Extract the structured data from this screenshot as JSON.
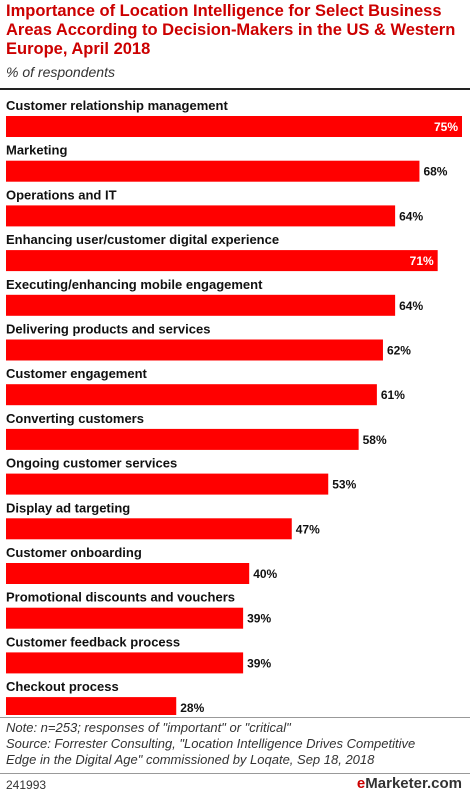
{
  "title": "Importance of Location Intelligence for Select Business Areas According to Decision-Makers in the US & Western Europe, April 2018",
  "subtitle": "% of respondents",
  "chart_data": {
    "type": "bar",
    "orientation": "horizontal",
    "categories": [
      "Customer relationship management",
      "Marketing",
      "Operations and IT",
      "Enhancing user/customer digital experience",
      "Executing/enhancing mobile engagement",
      "Delivering products and services",
      "Customer engagement",
      "Converting customers",
      "Ongoing customer services",
      "Display ad targeting",
      "Customer onboarding",
      "Promotional discounts and vouchers",
      "Customer feedback process",
      "Checkout process"
    ],
    "values": [
      75,
      68,
      64,
      71,
      64,
      62,
      61,
      58,
      53,
      47,
      40,
      39,
      39,
      28
    ],
    "value_labels": [
      "75%",
      "68%",
      "64%",
      "71%",
      "64%",
      "62%",
      "61%",
      "58%",
      "53%",
      "47%",
      "40%",
      "39%",
      "39%",
      "28%"
    ],
    "inside_labels": [
      true,
      false,
      false,
      true,
      false,
      false,
      false,
      false,
      false,
      false,
      false,
      false,
      false,
      false
    ],
    "bar_color": "#ff0000",
    "xlim": [
      0,
      75
    ],
    "grid": false,
    "legend": "none"
  },
  "note": "Note: n=253; responses of \"important\" or \"critical\"",
  "source": "Source: Forrester Consulting, \"Location Intelligence Drives Competitive Edge in the Digital Age\" commissioned by Loqate, Sep 18, 2018",
  "chart_id": "241993",
  "brand": {
    "prefix": "e",
    "name": "Marketer",
    "suffix": ".com"
  }
}
